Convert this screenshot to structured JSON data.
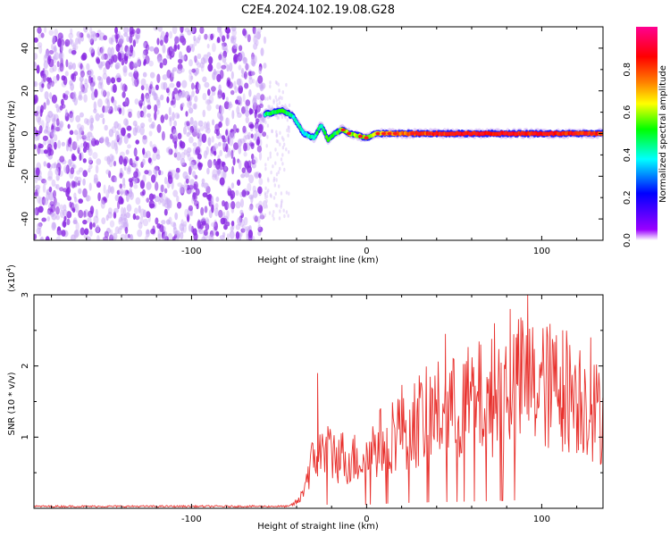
{
  "title": "C2E4.2024.102.19.08.G28",
  "chart_data": [
    {
      "type": "heatmap",
      "xlabel": "Height of straight line (km)",
      "ylabel": "Frequency (Hz)",
      "xlim": [
        -190,
        135
      ],
      "ylim": [
        -50,
        50
      ],
      "x_ticks": [
        -100,
        0,
        100
      ],
      "y_ticks": [
        -40,
        -20,
        0,
        20,
        40
      ],
      "colorbar": {
        "label": "Normalized spectral amplitude",
        "range": [
          0,
          1
        ],
        "ticks": [
          0.0,
          0.2,
          0.4,
          0.6,
          0.8
        ],
        "colors": [
          "#ffffff",
          "#9a00ff",
          "#0000ff",
          "#00ffff",
          "#00ff00",
          "#ffff00",
          "#ff8000",
          "#ff0000",
          "#ff0090"
        ]
      },
      "features": [
        {
          "name": "noise",
          "x_range": [
            -190,
            -58
          ],
          "freq_range": [
            -50,
            50
          ],
          "amplitude": 0.12
        },
        {
          "name": "signal",
          "x": [
            -58,
            -48,
            -42,
            -36,
            -30,
            -26,
            -22,
            -18,
            -14,
            -10,
            -5,
            0,
            5,
            10,
            30,
            60,
            90,
            120,
            135
          ],
          "freq": [
            9,
            11,
            8,
            0,
            -2,
            4,
            -3,
            0,
            2,
            0,
            -1,
            -2,
            0,
            0,
            0,
            0,
            0,
            0,
            0
          ],
          "amplitude": [
            0.45,
            0.5,
            0.4,
            0.4,
            0.45,
            0.45,
            0.5,
            0.5,
            0.55,
            0.6,
            0.6,
            0.55,
            0.6,
            0.7,
            0.8,
            0.85,
            0.85,
            0.85,
            0.8
          ]
        }
      ]
    },
    {
      "type": "line",
      "xlabel": "Height of straight line (km)",
      "ylabel": "SNR (10 * v/v)",
      "y_multiplier": "(x10",
      "y_multiplier_exp": "4",
      "y_multiplier_close": ")",
      "xlim": [
        -190,
        135
      ],
      "ylim": [
        0,
        3
      ],
      "x_ticks": [
        -100,
        0,
        100
      ],
      "y_ticks": [
        1,
        2,
        3
      ],
      "series": [
        {
          "color": "#e8322e",
          "envelope_x": [
            -190,
            -45,
            -38,
            -34,
            -30,
            -25,
            -20,
            -15,
            -10,
            -5,
            0,
            10,
            20,
            30,
            40,
            50,
            60,
            70,
            80,
            90,
            100,
            110,
            120,
            130,
            135
          ],
          "envelope_y": [
            0.02,
            0.02,
            0.15,
            0.6,
            0.9,
            1.0,
            1.0,
            0.95,
            0.9,
            0.9,
            1.0,
            1.25,
            1.5,
            1.6,
            1.75,
            1.8,
            1.95,
            2.0,
            2.2,
            2.3,
            2.2,
            2.2,
            2.1,
            1.8,
            1.6
          ],
          "peaks": [
            [
              -28,
              1.9
            ],
            [
              45,
              2.45
            ],
            [
              73,
              2.6
            ],
            [
              82,
              2.8
            ],
            [
              92,
              3.0
            ],
            [
              86,
              2.45
            ],
            [
              112,
              2.5
            ],
            [
              128,
              2.4
            ]
          ]
        }
      ]
    }
  ]
}
